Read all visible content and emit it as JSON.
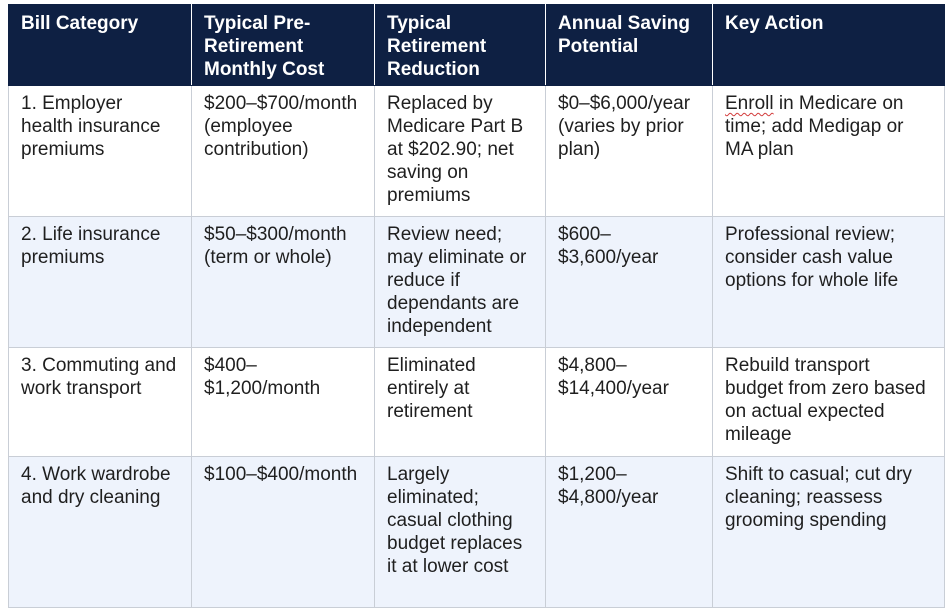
{
  "table": {
    "headers": [
      "Bill Category",
      "Typical Pre-Retirement Monthly Cost",
      "Typical Retirement Reduction",
      "Annual Saving Potential",
      "Key Action"
    ],
    "rows": [
      {
        "category": "1. Employer health insurance premiums",
        "monthly_cost": "$200–$700/month (employee contribution)",
        "reduction": "Replaced by Medicare Part B at $202.90; net saving on premiums",
        "annual_saving": "$0–$6,000/year (varies by prior plan)",
        "action_flagged_word": "Enroll",
        "action_rest": " in Medicare on time; add Medigap or MA plan"
      },
      {
        "category": "2. Life insurance premiums",
        "monthly_cost": "$50–$300/month (term or whole)",
        "reduction": "Review need; may eliminate or reduce if dependants are independent",
        "annual_saving": "$600–$3,600/year",
        "action": "Professional review; consider cash value options for whole life"
      },
      {
        "category": "3. Commuting and work transport",
        "monthly_cost": "$400–$1,200/month",
        "reduction": "Eliminated entirely at retirement",
        "annual_saving": "$4,800–$14,400/year",
        "action": "Rebuild transport budget from zero based on actual expected mileage"
      },
      {
        "category": "4. Work wardrobe and dry cleaning",
        "monthly_cost": "$100–$400/month",
        "reduction": "Largely eliminated; casual clothing budget replaces it at lower cost",
        "annual_saving": "$1,200–$4,800/year",
        "action": "Shift to casual; cut dry cleaning; reassess grooming spending"
      }
    ]
  },
  "colors": {
    "header_bg": "#0e2043",
    "header_text": "#ffffff",
    "row_alt_bg": "#eef3fc",
    "grid_line": "#c9ced6",
    "spellcheck_underline": "#d23b3b"
  }
}
